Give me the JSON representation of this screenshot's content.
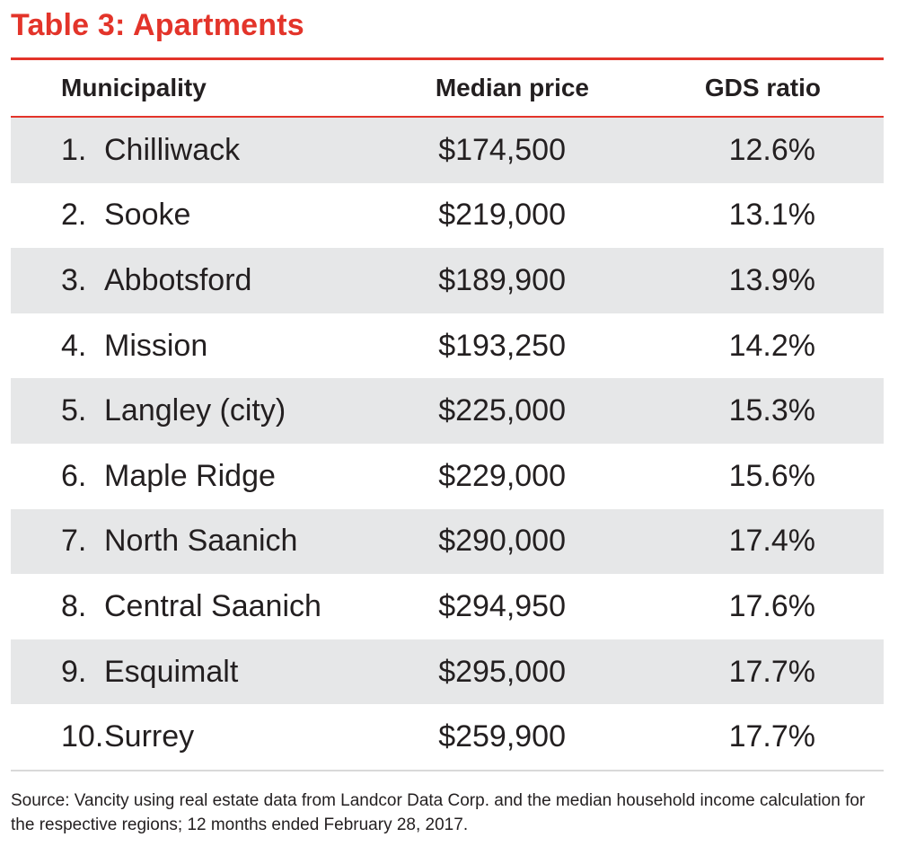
{
  "title": "Table 3: Apartments",
  "header": {
    "municipality": "Municipality",
    "median_price": "Median price",
    "gds_ratio": "GDS ratio"
  },
  "rows": [
    {
      "rank": "1.",
      "municipality": "Chilliwack",
      "median_price": "$174,500",
      "gds_ratio": "12.6%"
    },
    {
      "rank": "2.",
      "municipality": "Sooke",
      "median_price": "$219,000",
      "gds_ratio": "13.1%"
    },
    {
      "rank": "3.",
      "municipality": "Abbotsford",
      "median_price": "$189,900",
      "gds_ratio": "13.9%"
    },
    {
      "rank": "4.",
      "municipality": "Mission",
      "median_price": "$193,250",
      "gds_ratio": "14.2%"
    },
    {
      "rank": "5.",
      "municipality": "Langley (city)",
      "median_price": "$225,000",
      "gds_ratio": "15.3%"
    },
    {
      "rank": "6.",
      "municipality": "Maple Ridge",
      "median_price": "$229,000",
      "gds_ratio": "15.6%"
    },
    {
      "rank": "7.",
      "municipality": "North Saanich",
      "median_price": "$290,000",
      "gds_ratio": "17.4%"
    },
    {
      "rank": "8.",
      "municipality": "Central Saanich",
      "median_price": "$294,950",
      "gds_ratio": "17.6%"
    },
    {
      "rank": "9.",
      "municipality": "Esquimalt",
      "median_price": "$295,000",
      "gds_ratio": "17.7%"
    },
    {
      "rank": "10.",
      "municipality": "Surrey",
      "median_price": "$259,900",
      "gds_ratio": "17.7%"
    }
  ],
  "source": "Source: Vancity using real estate data from Landcor Data Corp. and the median household income calculation for the respective regions; 12 months ended February 28, 2017.",
  "colors": {
    "accent": "#e3342a",
    "row_shade": "#e6e7e8",
    "text": "#231f20"
  }
}
